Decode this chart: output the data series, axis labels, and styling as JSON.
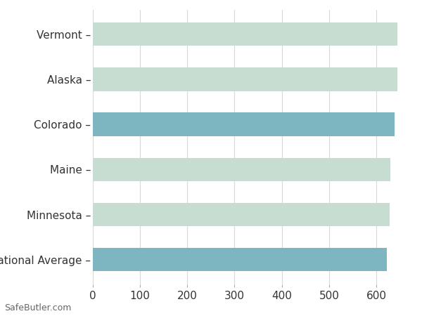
{
  "categories": [
    "Vermont",
    "Alaska",
    "Colorado",
    "Maine",
    "Minnesota",
    "National Average"
  ],
  "values": [
    645,
    645,
    638,
    630,
    628,
    622
  ],
  "bar_colors": [
    "#c8ddd1",
    "#c8ddd1",
    "#7db5c0",
    "#c8ddd1",
    "#c8ddd1",
    "#7db5c0"
  ],
  "background_color": "#ffffff",
  "grid_color": "#d8d8d8",
  "xlim": [
    0,
    670
  ],
  "xticks": [
    0,
    100,
    200,
    300,
    400,
    500,
    600
  ],
  "bar_height": 0.52,
  "watermark": "SafeButler.com",
  "tick_fontsize": 11,
  "label_fontsize": 11,
  "watermark_fontsize": 9
}
